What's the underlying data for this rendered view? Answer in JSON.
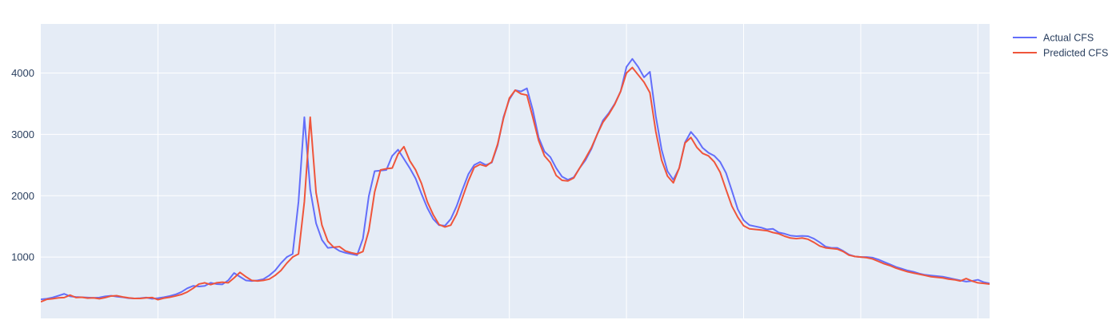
{
  "chart_data": {
    "type": "line",
    "title": "",
    "xlabel": "",
    "ylabel": "",
    "ylim": [
      0,
      4800
    ],
    "yticks": [
      1000,
      2000,
      3000,
      4000
    ],
    "ytick_labels": [
      "1000",
      "2000",
      "3000",
      "4000"
    ],
    "xlim": [
      0,
      162
    ],
    "xgrid": [
      20,
      40,
      60,
      80,
      100,
      120,
      140,
      160
    ],
    "grid": true,
    "legend_position": "top-right",
    "series": [
      {
        "name": "Actual CFS",
        "color": "#636efa",
        "values": [
          310,
          320,
          340,
          370,
          400,
          360,
          350,
          345,
          340,
          335,
          340,
          360,
          370,
          355,
          345,
          330,
          325,
          330,
          340,
          320,
          330,
          345,
          365,
          390,
          430,
          490,
          530,
          520,
          530,
          580,
          560,
          555,
          620,
          740,
          680,
          620,
          610,
          620,
          640,
          700,
          780,
          900,
          1000,
          1050,
          1900,
          3280,
          2100,
          1550,
          1280,
          1150,
          1160,
          1100,
          1070,
          1050,
          1030,
          1300,
          1990,
          2400,
          2410,
          2420,
          2650,
          2750,
          2600,
          2450,
          2280,
          2030,
          1800,
          1620,
          1520,
          1510,
          1620,
          1830,
          2100,
          2350,
          2500,
          2550,
          2500,
          2540,
          2820,
          3280,
          3570,
          3720,
          3700,
          3750,
          3400,
          2950,
          2720,
          2630,
          2450,
          2310,
          2260,
          2300,
          2450,
          2580,
          2760,
          3000,
          3230,
          3350,
          3500,
          3700,
          4100,
          4230,
          4100,
          3930,
          4020,
          3300,
          2750,
          2400,
          2260,
          2450,
          2870,
          3040,
          2930,
          2780,
          2700,
          2650,
          2550,
          2370,
          2080,
          1780,
          1600,
          1520,
          1500,
          1480,
          1450,
          1460,
          1400,
          1380,
          1350,
          1340,
          1345,
          1340,
          1300,
          1240,
          1170,
          1150,
          1150,
          1100,
          1040,
          1010,
          1000,
          1000,
          990,
          960,
          920,
          880,
          840,
          810,
          780,
          760,
          730,
          710,
          700,
          690,
          680,
          660,
          640,
          620,
          600,
          610,
          630,
          590,
          570,
          560,
          550
        ]
      },
      {
        "name": "Predicted CFS",
        "color": "#ef553b",
        "values": [
          270,
          310,
          320,
          335,
          340,
          380,
          340,
          345,
          330,
          335,
          320,
          340,
          365,
          370,
          350,
          335,
          325,
          325,
          335,
          340,
          305,
          330,
          345,
          365,
          390,
          430,
          490,
          560,
          580,
          550,
          580,
          590,
          580,
          660,
          750,
          680,
          620,
          610,
          620,
          640,
          700,
          780,
          900,
          1000,
          1050,
          1900,
          3280,
          2050,
          1520,
          1260,
          1160,
          1170,
          1100,
          1070,
          1050,
          1090,
          1430,
          2060,
          2420,
          2440,
          2450,
          2680,
          2800,
          2570,
          2420,
          2200,
          1900,
          1690,
          1530,
          1490,
          1520,
          1700,
          1970,
          2240,
          2460,
          2510,
          2480,
          2550,
          2840,
          3260,
          3590,
          3720,
          3660,
          3640,
          3280,
          2900,
          2650,
          2540,
          2330,
          2250,
          2240,
          2290,
          2450,
          2610,
          2780,
          3000,
          3200,
          3330,
          3490,
          3700,
          4000,
          4090,
          3970,
          3850,
          3680,
          3050,
          2580,
          2320,
          2210,
          2450,
          2860,
          2950,
          2790,
          2690,
          2650,
          2550,
          2380,
          2100,
          1830,
          1650,
          1510,
          1460,
          1450,
          1440,
          1430,
          1400,
          1380,
          1340,
          1310,
          1300,
          1310,
          1290,
          1240,
          1180,
          1150,
          1140,
          1130,
          1090,
          1030,
          1010,
          1000,
          990,
          970,
          930,
          890,
          860,
          820,
          790,
          760,
          740,
          720,
          700,
          680,
          670,
          660,
          640,
          630,
          610,
          650,
          610,
          580,
          570,
          560
        ]
      }
    ]
  }
}
